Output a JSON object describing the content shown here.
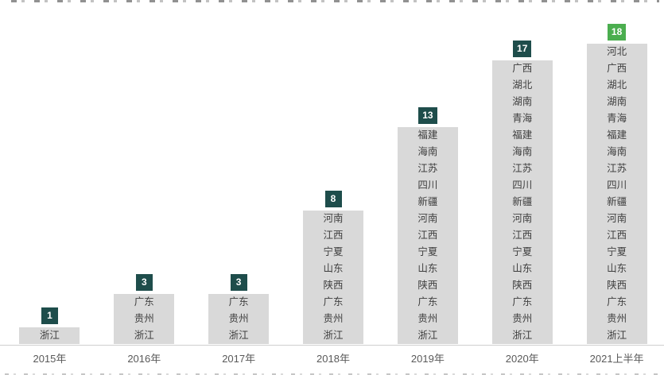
{
  "chart_data": {
    "type": "bar",
    "title": "",
    "xlabel": "",
    "ylabel": "",
    "grid": false,
    "legend_position": "none",
    "categories": [
      "2015年",
      "2016年",
      "2017年",
      "2018年",
      "2019年",
      "2020年",
      "2021上半年"
    ],
    "values": [
      1,
      3,
      3,
      8,
      13,
      17,
      18
    ],
    "bars": [
      {
        "category": "2015年",
        "count": "1",
        "badge_color": "#1E4D4B",
        "provinces": [
          "浙江"
        ]
      },
      {
        "category": "2016年",
        "count": "3",
        "badge_color": "#1E4D4B",
        "provinces": [
          "广东",
          "贵州",
          "浙江"
        ]
      },
      {
        "category": "2017年",
        "count": "3",
        "badge_color": "#1E4D4B",
        "provinces": [
          "广东",
          "贵州",
          "浙江"
        ]
      },
      {
        "category": "2018年",
        "count": "8",
        "badge_color": "#1E4D4B",
        "provinces": [
          "河南",
          "江西",
          "宁夏",
          "山东",
          "陕西",
          "广东",
          "贵州",
          "浙江"
        ]
      },
      {
        "category": "2019年",
        "count": "13",
        "badge_color": "#1E4D4B",
        "provinces": [
          "福建",
          "海南",
          "江苏",
          "四川",
          "新疆",
          "河南",
          "江西",
          "宁夏",
          "山东",
          "陕西",
          "广东",
          "贵州",
          "浙江"
        ]
      },
      {
        "category": "2020年",
        "count": "17",
        "badge_color": "#1E4D4B",
        "provinces": [
          "广西",
          "湖北",
          "湖南",
          "青海",
          "福建",
          "海南",
          "江苏",
          "四川",
          "新疆",
          "河南",
          "江西",
          "宁夏",
          "山东",
          "陕西",
          "广东",
          "贵州",
          "浙江"
        ]
      },
      {
        "category": "2021上半年",
        "count": "18",
        "badge_color": "#4BAE4F",
        "provinces": [
          "河北",
          "广西",
          "湖北",
          "湖南",
          "青海",
          "福建",
          "海南",
          "江苏",
          "四川",
          "新疆",
          "河南",
          "江西",
          "宁夏",
          "山东",
          "陕西",
          "广东",
          "贵州",
          "浙江"
        ]
      }
    ],
    "colors": {
      "bar_fill": "#D9D9D9",
      "badge_dark": "#1E4D4B",
      "badge_green": "#4BAE4F",
      "badge_text": "#FFFFFF",
      "province_text": "#3F3F3F",
      "axis_label": "#595959",
      "axis_line": "#D0D0D0"
    }
  }
}
